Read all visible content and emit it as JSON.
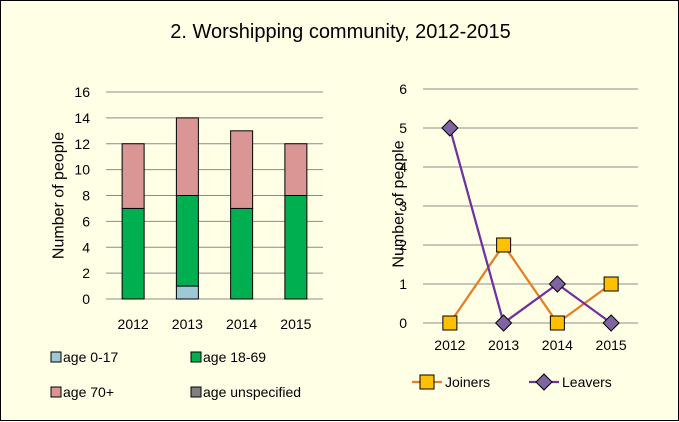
{
  "title": "2. Worshipping community, 2012-2015",
  "chart_data": [
    {
      "type": "bar",
      "stacked": true,
      "categories": [
        "2012",
        "2013",
        "2014",
        "2015"
      ],
      "series": [
        {
          "name": "age 0-17",
          "values": [
            0,
            1,
            0,
            0
          ],
          "color": "#9dc9d6"
        },
        {
          "name": "age 18-69",
          "values": [
            7,
            7,
            7,
            8
          ],
          "color": "#00b050"
        },
        {
          "name": "age 70+",
          "values": [
            5,
            6,
            6,
            4
          ],
          "color": "#d99694"
        },
        {
          "name": "age unspecified",
          "values": [
            0,
            0,
            0,
            0
          ],
          "color": "#808080"
        }
      ],
      "ylabel": "Number of people",
      "ylim": [
        0,
        16
      ],
      "yticks": [
        0,
        2,
        4,
        6,
        8,
        10,
        12,
        14,
        16
      ],
      "grid": true,
      "legend": "bottom"
    },
    {
      "type": "line",
      "categories": [
        "2012",
        "2013",
        "2014",
        "2015"
      ],
      "series": [
        {
          "name": "Joiners",
          "values": [
            0,
            2,
            0,
            1
          ],
          "color": "#e67e22",
          "marker": "square",
          "marker_color": "#ffc000"
        },
        {
          "name": "Leavers",
          "values": [
            5,
            0,
            1,
            0
          ],
          "color": "#7030a0",
          "marker": "diamond",
          "marker_color": "#8064a2"
        }
      ],
      "ylabel": "Number of people",
      "ylim": [
        0,
        6
      ],
      "yticks": [
        0,
        1,
        2,
        3,
        4,
        5,
        6
      ],
      "grid": true,
      "legend": "bottom"
    }
  ]
}
